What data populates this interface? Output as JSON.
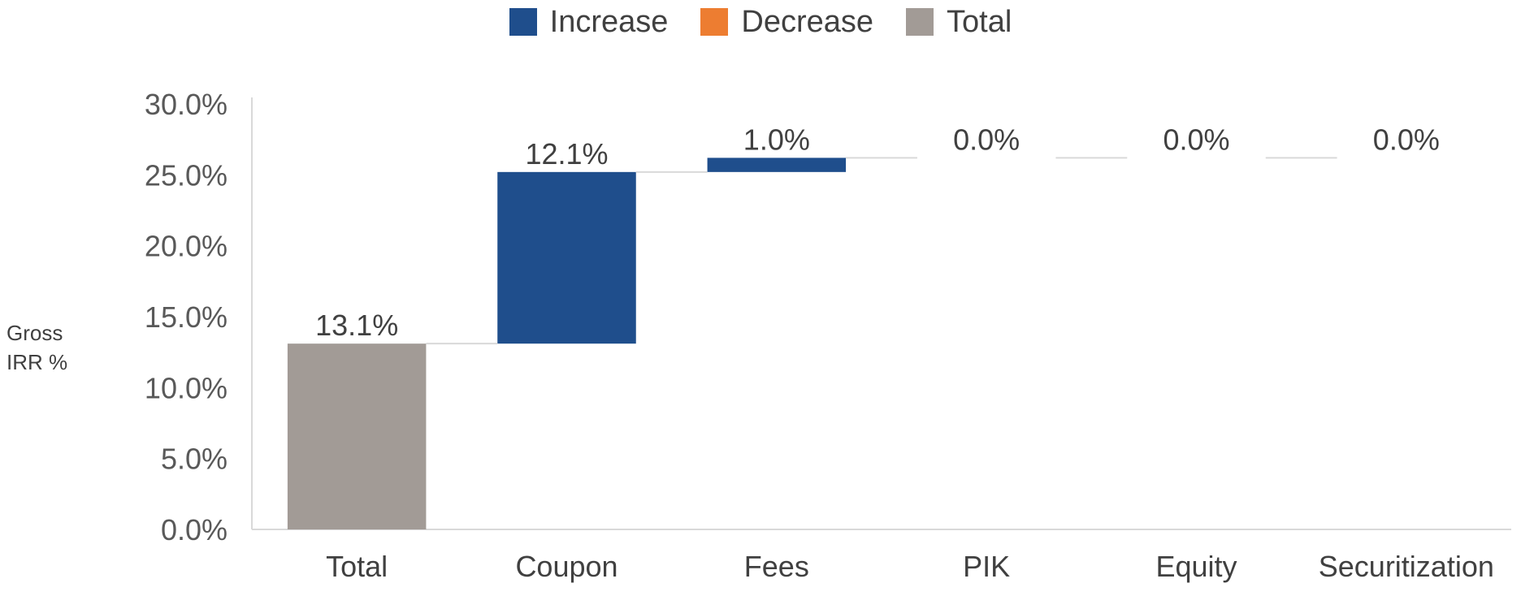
{
  "chart_data": {
    "type": "waterfall",
    "title": "",
    "ylabel_lines": [
      "Gross",
      "IRR %"
    ],
    "xlabel": "",
    "ylim": [
      0,
      30
    ],
    "yticks": [
      "0.0%",
      "5.0%",
      "10.0%",
      "15.0%",
      "20.0%",
      "25.0%",
      "30.0%"
    ],
    "legend": [
      {
        "name": "Increase",
        "color": "#1f4e8c"
      },
      {
        "name": "Decrease",
        "color": "#ed7d31"
      },
      {
        "name": "Total",
        "color": "#a29b96"
      }
    ],
    "legend_position": "top",
    "grid": false,
    "categories": [
      "Total",
      "Coupon",
      "Fees",
      "PIK",
      "Equity",
      "Securitization"
    ],
    "values": [
      13.1,
      12.1,
      1.0,
      0.0,
      0.0,
      0.0
    ],
    "kinds": [
      "total",
      "increase",
      "increase",
      "increase",
      "increase",
      "increase"
    ],
    "labels": [
      "13.1%",
      "12.1%",
      "1.0%",
      "0.0%",
      "0.0%",
      "0.0%"
    ]
  }
}
